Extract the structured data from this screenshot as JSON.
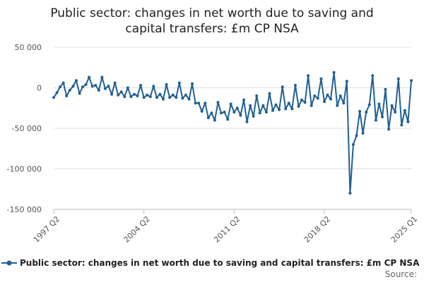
{
  "chart_data": {
    "type": "line",
    "title": "Public sector: changes in net worth due to saving and capital transfers: £m CP NSA",
    "title_lines": [
      "Public sector: changes in net worth due to saving and",
      "capital transfers: £m CP NSA"
    ],
    "xlabel": "",
    "ylabel": "",
    "ylim": [
      -150000,
      50000
    ],
    "y_ticks": [
      50000,
      0,
      -50000,
      -100000,
      -150000
    ],
    "y_tick_labels": [
      "50 000",
      "0",
      "-50 000",
      "-100 000",
      "-150 000"
    ],
    "x_tick_labels": [
      "1997 Q2",
      "2004 Q2",
      "2011 Q2",
      "2018 Q2",
      "2025 Q1"
    ],
    "x_start": "1997 Q2",
    "x_end": "2025 Q2",
    "grid": "horizontal",
    "legend_position": "bottom",
    "series": [
      {
        "name": "Public sector: changes in net worth due to saving and capital transfers: £m CP NSA",
        "color": "#206095",
        "values": [
          -12000,
          -6000,
          1000,
          6000,
          -10000,
          -3000,
          2000,
          9000,
          -7000,
          1000,
          4000,
          13000,
          2000,
          3000,
          -3000,
          13000,
          -1000,
          2000,
          -8000,
          6000,
          -9000,
          -5000,
          -11000,
          0,
          -11000,
          -8000,
          -10000,
          3000,
          -12000,
          -9000,
          -11000,
          2000,
          -12000,
          -8000,
          -14000,
          4000,
          -12000,
          -9000,
          -12000,
          6000,
          -13000,
          -9000,
          -14000,
          5000,
          -19000,
          -19000,
          -29000,
          -19000,
          -37000,
          -31000,
          -40000,
          -18000,
          -31000,
          -30000,
          -39000,
          -20000,
          -30000,
          -25000,
          -34000,
          -15000,
          -42000,
          -22000,
          -35000,
          -10000,
          -31000,
          -22000,
          -30000,
          -7000,
          -28000,
          -21000,
          -27000,
          1000,
          -26000,
          -19000,
          -26000,
          3000,
          -23000,
          -15000,
          -18000,
          15000,
          -22000,
          -10000,
          -13000,
          11000,
          -17000,
          -9000,
          -14000,
          19000,
          -22000,
          -10000,
          -19000,
          8000,
          -130000,
          -70000,
          -59000,
          -29000,
          -56000,
          -30000,
          -21000,
          15000,
          -40000,
          -20000,
          -36000,
          -2000,
          -51000,
          -22000,
          -30000,
          11000,
          -46000,
          -28000,
          -42000,
          9000
        ]
      }
    ]
  },
  "legend": {
    "label": "Public sector: changes in net worth due to saving and capital transfers: £m CP NSA"
  },
  "source": {
    "label": "Source:"
  }
}
